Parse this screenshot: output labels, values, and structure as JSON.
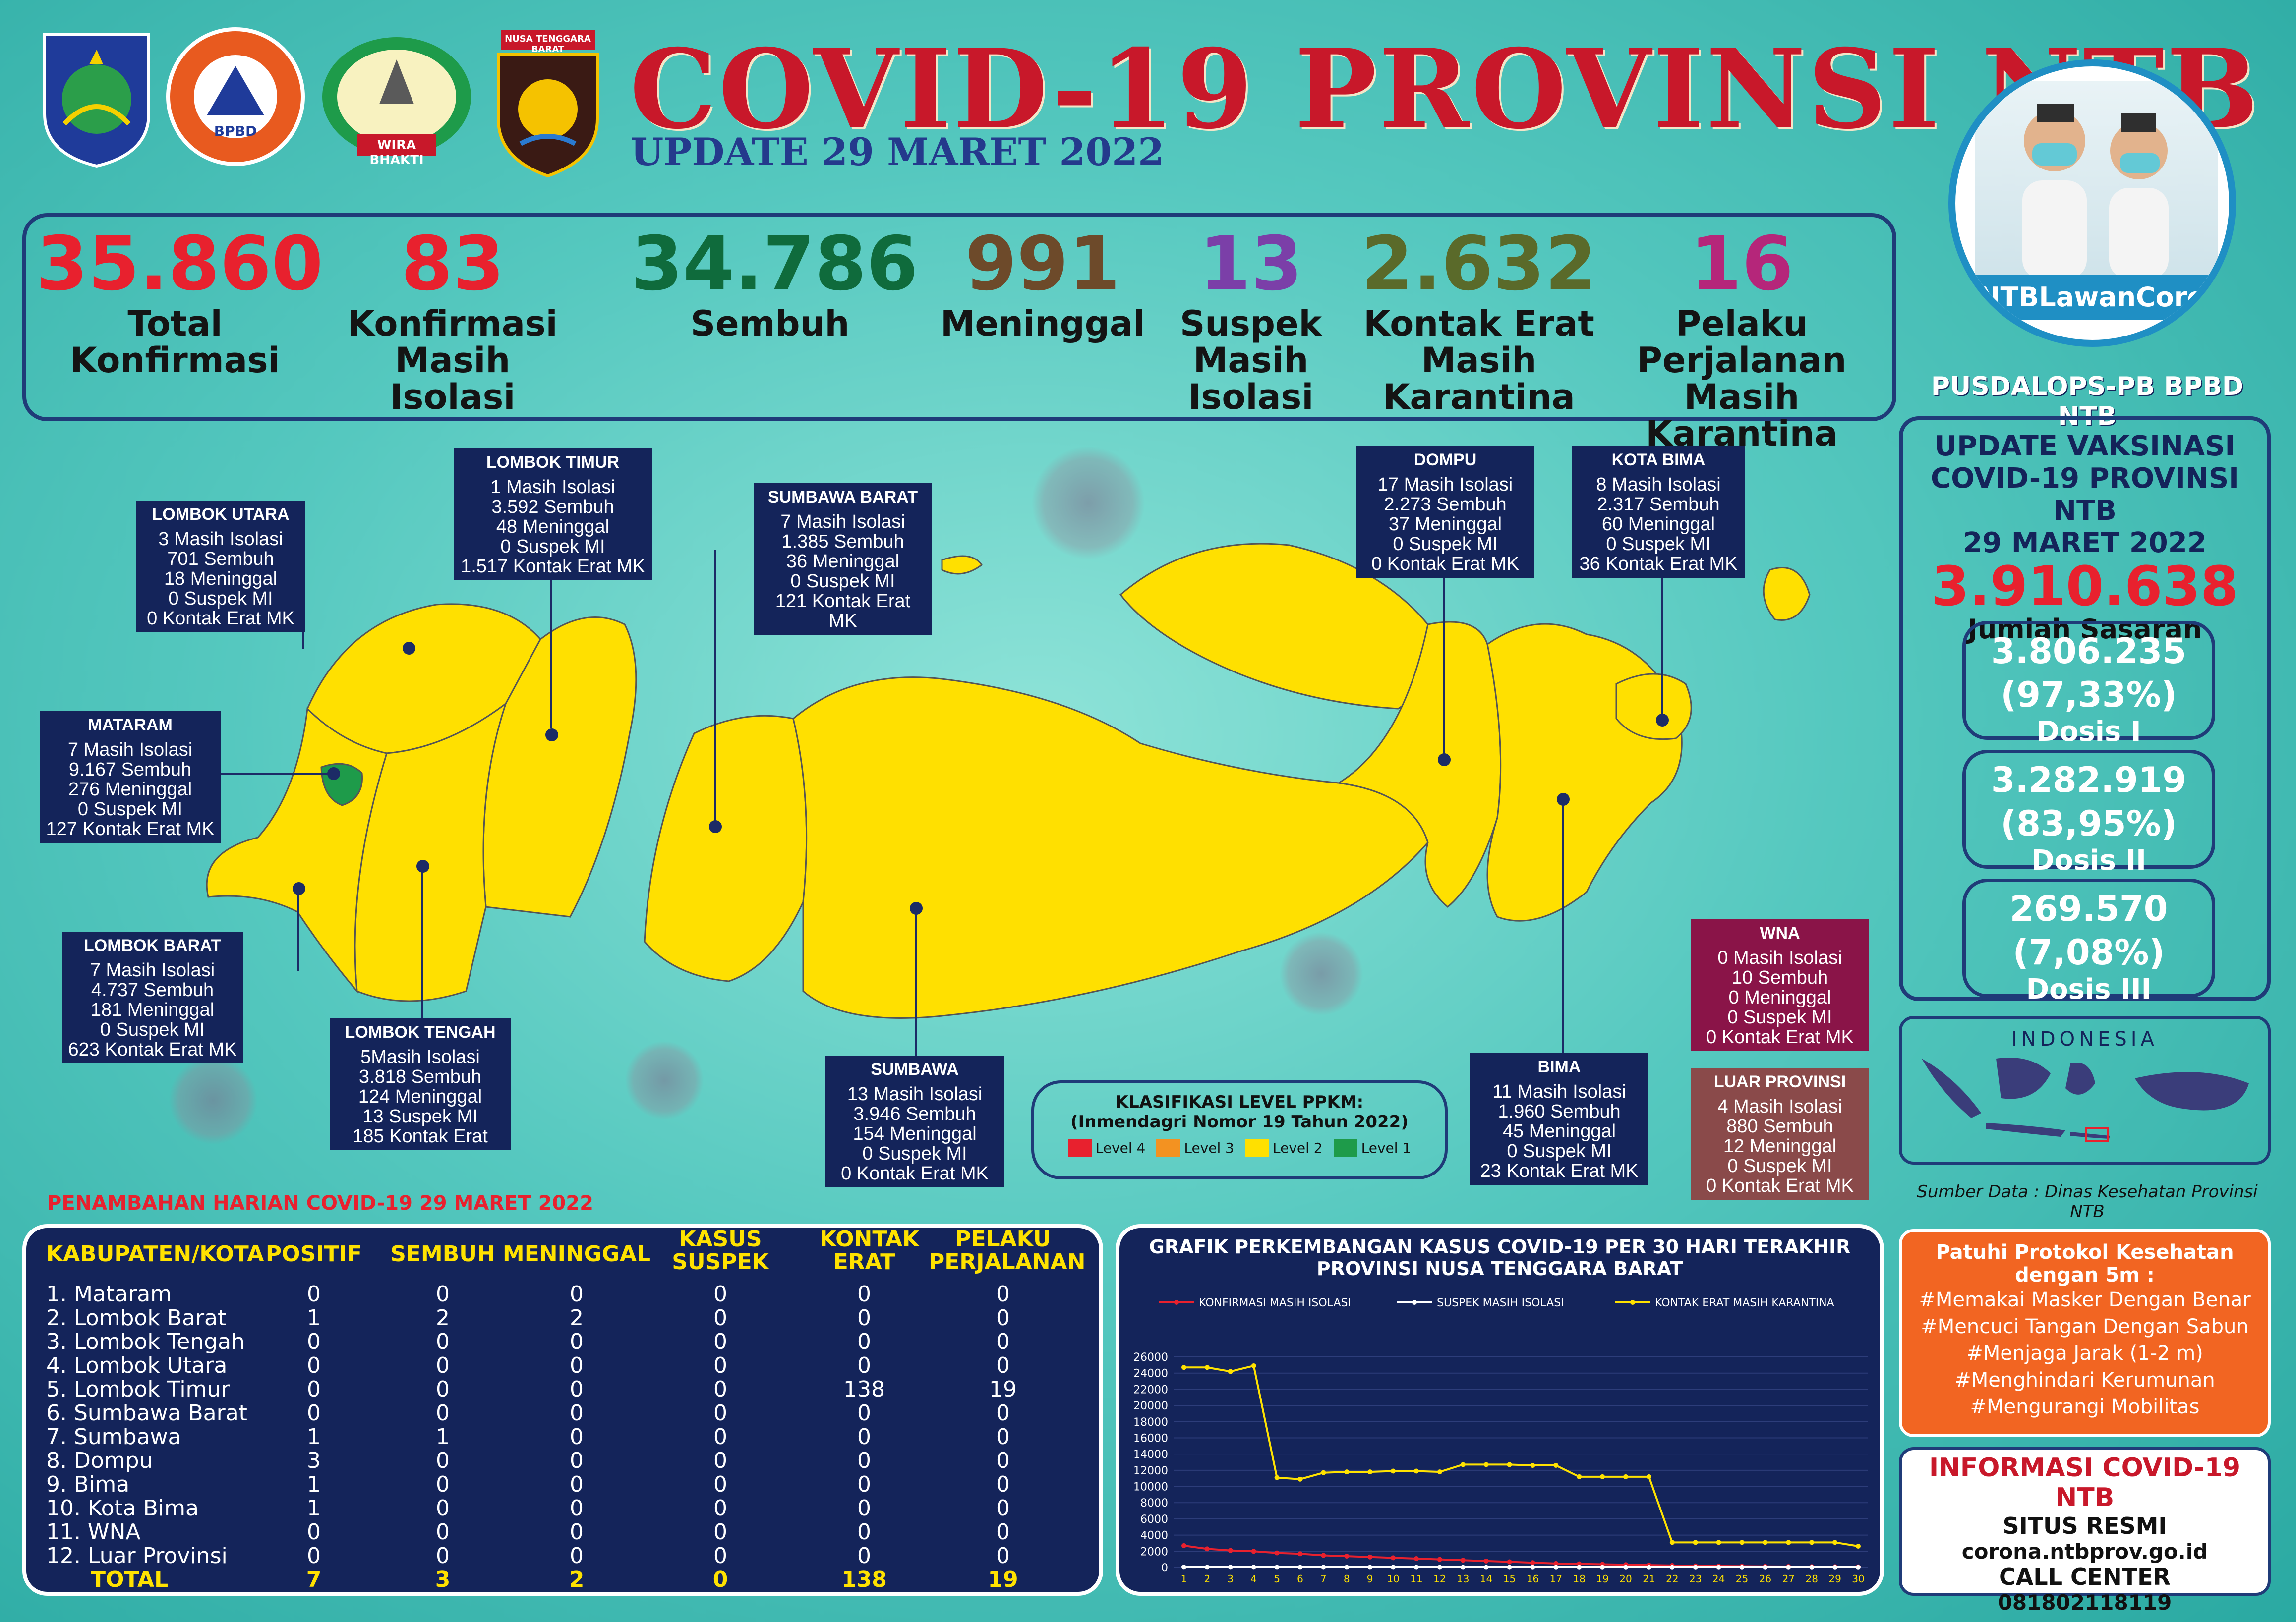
{
  "header": {
    "title": "COVID-19 PROVINSI NTB",
    "subtitle": "UPDATE 29 MARET 2022"
  },
  "logos": {
    "bpbd": "BPBD",
    "wira": "WIRA BHAKTI",
    "ntb_police": "NUSA TENGGARA BARAT"
  },
  "stats": [
    {
      "value": "35.860",
      "label1": "Total",
      "label2": "Konfirmasi",
      "label3": "",
      "color": "#e8212e"
    },
    {
      "value": "83",
      "label1": "Konfirmasi",
      "label2": "Masih",
      "label3": "Isolasi",
      "color": "#e8212e"
    },
    {
      "value": "34.786",
      "label1": "Sembuh",
      "label2": "",
      "label3": "",
      "color": "#0f6b3c"
    },
    {
      "value": "991",
      "label1": "Meninggal",
      "label2": "",
      "label3": "",
      "color": "#6d4a2a"
    },
    {
      "value": "13",
      "label1": "Suspek",
      "label2": "Masih",
      "label3": "Isolasi",
      "color": "#7b3fa8"
    },
    {
      "value": "2.632",
      "label1": "Kontak Erat",
      "label2": "Masih",
      "label3": "Karantina",
      "color": "#5a6a2a"
    },
    {
      "value": "16",
      "label1": "Pelaku",
      "label2": "Perjalanan",
      "label3": "Masih Karantina",
      "color": "#b5267a"
    }
  ],
  "hashtag": "#NTBLawanCorona",
  "pusdalops": "PUSDALOPS-PB BPBD NTB",
  "vaksinasi": {
    "title1": "UPDATE VAKSINASI",
    "title2": "COVID-19 PROVINSI NTB",
    "title3": "29 MARET 2022",
    "sasaran": "3.910.638",
    "sasaran_label": "Jumlah Sasaran",
    "doses": [
      {
        "count": "3.806.235",
        "pct": "(97,33%)",
        "label": "Dosis I",
        "fraction": 0.9733
      },
      {
        "count": "3.282.919",
        "pct": "(83,95%)",
        "label": "Dosis II",
        "fraction": 0.8395
      },
      {
        "count": "269.570",
        "pct": "(7,08%)",
        "label": "Dosis III",
        "fraction": 0.0708
      }
    ]
  },
  "regions": {
    "lombok_utara": {
      "name": "LOMBOK UTARA",
      "lines": [
        "3 Masih Isolasi",
        "701 Sembuh",
        "18 Meninggal",
        "0 Suspek MI",
        "0 Kontak Erat MK"
      ]
    },
    "lombok_timur": {
      "name": "LOMBOK TIMUR",
      "lines": [
        "1 Masih Isolasi",
        "3.592 Sembuh",
        "48 Meninggal",
        "0 Suspek MI",
        "1.517 Kontak Erat MK"
      ]
    },
    "sumbawa_barat": {
      "name": "SUMBAWA BARAT",
      "lines": [
        "7 Masih Isolasi",
        "1.385 Sembuh",
        "36 Meninggal",
        "0 Suspek MI",
        "121 Kontak Erat MK"
      ]
    },
    "dompu": {
      "name": "DOMPU",
      "lines": [
        "17 Masih Isolasi",
        "2.273 Sembuh",
        "37 Meninggal",
        "0 Suspek MI",
        "0 Kontak Erat MK"
      ]
    },
    "kota_bima": {
      "name": "KOTA BIMA",
      "lines": [
        "8 Masih Isolasi",
        "2.317 Sembuh",
        "60 Meninggal",
        "0 Suspek MI",
        "36 Kontak Erat MK"
      ]
    },
    "mataram": {
      "name": "MATARAM",
      "lines": [
        "7 Masih Isolasi",
        "9.167 Sembuh",
        "276 Meninggal",
        "0 Suspek MI",
        "127 Kontak Erat MK"
      ]
    },
    "lombok_barat": {
      "name": "LOMBOK BARAT",
      "lines": [
        "7 Masih Isolasi",
        "4.737 Sembuh",
        "181 Meninggal",
        "0 Suspek MI",
        "623 Kontak Erat MK"
      ]
    },
    "lombok_tengah": {
      "name": "LOMBOK TENGAH",
      "lines": [
        "5Masih Isolasi",
        "3.818 Sembuh",
        "124 Meninggal",
        "13 Suspek MI",
        "185 Kontak Erat"
      ]
    },
    "sumbawa": {
      "name": "SUMBAWA",
      "lines": [
        "13 Masih Isolasi",
        "3.946 Sembuh",
        "154 Meninggal",
        "0 Suspek MI",
        "0 Kontak Erat MK"
      ]
    },
    "bima": {
      "name": "BIMA",
      "lines": [
        "11 Masih Isolasi",
        "1.960 Sembuh",
        "45 Meninggal",
        "0 Suspek MI",
        "23 Kontak Erat MK"
      ]
    },
    "wna": {
      "name": "WNA",
      "lines": [
        "0 Masih Isolasi",
        "10 Sembuh",
        "0 Meninggal",
        "0 Suspek MI",
        "0 Kontak Erat MK"
      ]
    },
    "luar_provinsi": {
      "name": "LUAR PROVINSI",
      "lines": [
        "4 Masih Isolasi",
        "880 Sembuh",
        "12 Meninggal",
        "0 Suspek MI",
        "0 Kontak Erat MK"
      ]
    }
  },
  "ppkm": {
    "title1": "KLASIFIKASI LEVEL PPKM:",
    "title2": "(Inmendagri Nomor 19 Tahun 2022)",
    "levels": [
      {
        "label": "Level 4",
        "color": "#e8212e"
      },
      {
        "label": "Level 3",
        "color": "#f39221"
      },
      {
        "label": "Level 2",
        "color": "#ffe000"
      },
      {
        "label": "Level 1",
        "color": "#1e9b4a"
      }
    ]
  },
  "indonesia_label": "INDONESIA",
  "sumber": "Sumber Data : Dinas Kesehatan Provinsi NTB",
  "daily": {
    "title": "PENAMBAHAN HARIAN COVID-19 29 MARET 2022",
    "headers": [
      "KABUPATEN/KOTA",
      "POSITIF",
      "SEMBUH",
      "MENINGGAL",
      "KASUS SUSPEK",
      "KONTAK ERAT",
      "PELAKU PERJALANAN"
    ],
    "rows": [
      [
        "1. Mataram",
        "0",
        "0",
        "0",
        "0",
        "0",
        "0"
      ],
      [
        "2. Lombok Barat",
        "1",
        "2",
        "2",
        "0",
        "0",
        "0"
      ],
      [
        "3. Lombok Tengah",
        "0",
        "0",
        "0",
        "0",
        "0",
        "0"
      ],
      [
        "4. Lombok Utara",
        "0",
        "0",
        "0",
        "0",
        "0",
        "0"
      ],
      [
        "5. Lombok Timur",
        "0",
        "0",
        "0",
        "0",
        "138",
        "19"
      ],
      [
        "6. Sumbawa Barat",
        "0",
        "0",
        "0",
        "0",
        "0",
        "0"
      ],
      [
        "7. Sumbawa",
        "1",
        "1",
        "0",
        "0",
        "0",
        "0"
      ],
      [
        "8. Dompu",
        "3",
        "0",
        "0",
        "0",
        "0",
        "0"
      ],
      [
        "9. Bima",
        "1",
        "0",
        "0",
        "0",
        "0",
        "0"
      ],
      [
        "10. Kota Bima",
        "1",
        "0",
        "0",
        "0",
        "0",
        "0"
      ],
      [
        "11. WNA",
        "0",
        "0",
        "0",
        "0",
        "0",
        "0"
      ],
      [
        "12. Luar Provinsi",
        "0",
        "0",
        "0",
        "0",
        "0",
        "0"
      ]
    ],
    "total": [
      "TOTAL",
      "7",
      "3",
      "2",
      "0",
      "138",
      "19"
    ]
  },
  "chart_data": {
    "type": "line",
    "title": "GRAFIK PERKEMBANGAN KASUS COVID-19 PER 30 HARI TERAKHIR",
    "subtitle": "PROVINSI NUSA TENGGARA BARAT",
    "xlabel": "",
    "ylabel": "",
    "x": [
      1,
      2,
      3,
      4,
      5,
      6,
      7,
      8,
      9,
      10,
      11,
      12,
      13,
      14,
      15,
      16,
      17,
      18,
      19,
      20,
      21,
      22,
      23,
      24,
      25,
      26,
      27,
      28,
      29,
      30
    ],
    "yticks": [
      0,
      2000,
      4000,
      6000,
      8000,
      10000,
      12000,
      14000,
      16000,
      18000,
      20000,
      22000,
      24000,
      26000
    ],
    "ylim": [
      0,
      26000
    ],
    "legend": "top",
    "grid": true,
    "series": [
      {
        "name": "KONFIRMASI MASIH ISOLASI",
        "color": "#e8212e",
        "values": [
          2700,
          2300,
          2100,
          2000,
          1800,
          1700,
          1500,
          1400,
          1300,
          1200,
          1100,
          1000,
          900,
          800,
          700,
          600,
          500,
          450,
          400,
          350,
          300,
          250,
          200,
          180,
          160,
          140,
          120,
          110,
          100,
          83
        ]
      },
      {
        "name": "SUSPEK MASIH ISOLASI",
        "color": "#ffffff",
        "values": [
          40,
          38,
          36,
          35,
          33,
          32,
          30,
          29,
          28,
          27,
          26,
          25,
          24,
          23,
          22,
          21,
          20,
          19,
          18,
          17,
          16,
          16,
          15,
          15,
          14,
          14,
          14,
          13,
          13,
          13
        ]
      },
      {
        "name": "KONTAK ERAT MASIH KARANTINA",
        "color": "#ffe200",
        "values": [
          24700,
          24700,
          24200,
          24900,
          11100,
          10900,
          11700,
          11800,
          11800,
          11900,
          11900,
          11800,
          12700,
          12700,
          12700,
          12600,
          12600,
          11200,
          11200,
          11200,
          11200,
          3100,
          3100,
          3100,
          3100,
          3100,
          3100,
          3100,
          3100,
          2632
        ]
      }
    ]
  },
  "protokol": {
    "title": "Patuhi Protokol Kesehatan dengan 5m :",
    "items": [
      "#Memakai Masker Dengan Benar",
      "#Mencuci Tangan Dengan Sabun",
      "#Menjaga Jarak (1-2 m)",
      "#Menghindari Kerumunan",
      "#Mengurangi Mobilitas"
    ]
  },
  "informasi": {
    "title": "INFORMASI COVID-19 NTB",
    "situs_label": "SITUS RESMI",
    "situs": "corona.ntbprov.go.id",
    "call_label": "CALL CENTER",
    "call": "081802118119"
  },
  "colors": {
    "navy": "#14245a",
    "map_yellow": "#ffe000",
    "map_green": "#1e9b4a",
    "accent_red": "#e8212e"
  }
}
